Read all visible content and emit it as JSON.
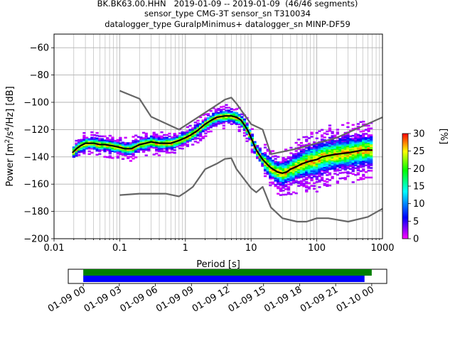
{
  "header": {
    "title_line1": "BK.BK63.00.HHN   2019-01-09 -- 2019-01-09  (46/46 segments)",
    "title_line2": "sensor_type CMG-3T sensor_sn T310034",
    "title_line3": "datalogger_type GuralpMinimus+ datalogger_sn MINP-DF59"
  },
  "chart_data": [
    {
      "type": "heatmap",
      "title": "BK.BK63.00.HHN   2019-01-09 -- 2019-01-09  (46/46 segments)",
      "xlabel": "Period [s]",
      "ylabel": "Power [m^2/s^4/Hz] [dB]",
      "x_scale": "log",
      "xlim": [
        0.01,
        1000
      ],
      "ylim": [
        -200,
        -50
      ],
      "x_ticks": [
        0.01,
        0.1,
        1,
        10,
        100,
        1000
      ],
      "x_tick_labels": [
        "0.01",
        "0.1",
        "1",
        "10",
        "100",
        "1000"
      ],
      "y_ticks": [
        -60,
        -80,
        -100,
        -120,
        -140,
        -160,
        -180,
        -200
      ],
      "y_tick_labels": [
        "−60",
        "−80",
        "−100",
        "−120",
        "−140",
        "−160",
        "−180",
        "−200"
      ],
      "grid": true,
      "colorbar": {
        "label": "[%]",
        "range": [
          0,
          30
        ],
        "ticks": [
          0,
          5,
          10,
          15,
          20,
          25,
          30
        ],
        "tick_labels": [
          "0",
          "5",
          "10",
          "15",
          "20",
          "25",
          "30"
        ],
        "colors": [
          "#ff00ff",
          "#0000ff",
          "#00ffff",
          "#00ff00",
          "#ffff00",
          "#ff0000"
        ]
      },
      "series": [
        {
          "name": "",
          "color": "#000000",
          "x": [
            0.019,
            0.022,
            0.025,
            0.03,
            0.04,
            0.05,
            0.06,
            0.08,
            0.1,
            0.12,
            0.15,
            0.2,
            0.25,
            0.3,
            0.4,
            0.5,
            0.6,
            0.8,
            1.0,
            1.2,
            1.5,
            2.0,
            2.5,
            3.0,
            4.0,
            5.0,
            6.0,
            7.0,
            8.0,
            9.0,
            10,
            12,
            15,
            18,
            20,
            25,
            30,
            35,
            40,
            50,
            60,
            80,
            100,
            120,
            150,
            200,
            300,
            400,
            500,
            700
          ],
          "y": [
            -137,
            -134,
            -132,
            -130,
            -130,
            -131,
            -131,
            -132,
            -133,
            -134,
            -134,
            -131,
            -130,
            -129,
            -130,
            -130,
            -130,
            -128,
            -126,
            -124,
            -121,
            -116,
            -113,
            -111,
            -110,
            -110,
            -111,
            -113,
            -117,
            -121,
            -126,
            -135,
            -142,
            -146,
            -148,
            -151,
            -152,
            -151,
            -149,
            -147,
            -145,
            -143,
            -142,
            -140,
            -139,
            -138,
            -137,
            -136,
            -135,
            -135
          ]
        },
        {
          "name": "",
          "color": "#666666",
          "x": [
            0.1,
            0.2,
            0.3,
            0.8,
            1.0,
            3.0,
            4.0,
            5.0,
            6.0,
            10,
            15,
            20
          ],
          "y": [
            -91.5,
            -97.4,
            -110.5,
            -120,
            -117,
            -102,
            -98,
            -96.5,
            -101,
            -116,
            -120,
            -138
          ]
        },
        {
          "name": "",
          "color": "#666666",
          "x": [
            20,
            50,
            100,
            200,
            1000
          ],
          "y": [
            -138,
            -134,
            -130,
            -126,
            -111
          ]
        },
        {
          "name": "",
          "color": "#666666",
          "x": [
            0.1,
            0.2,
            0.5,
            0.8,
            1.0,
            1.3,
            2.0,
            3.0,
            4.0,
            5.0,
            6.0,
            10,
            12,
            15,
            20,
            30,
            50,
            70,
            100,
            150,
            300,
            600,
            1000
          ],
          "y": [
            -168,
            -167,
            -167,
            -169,
            -166,
            -162,
            -149,
            -145,
            -141.5,
            -141,
            -149,
            -163,
            -166,
            -162,
            -177,
            -185,
            -187.5,
            -187.5,
            -185,
            -185,
            -187.5,
            -184,
            -178
          ]
        }
      ]
    },
    {
      "type": "bar",
      "title": "",
      "description_kind": "segment availability timeline",
      "x_tick_labels": [
        "01-09 00",
        "01-09 03",
        "01-09 06",
        "01-09 09",
        "01-09 12",
        "01-09 15",
        "01-09 18",
        "01-09 21",
        "01-10 00"
      ],
      "x_hours": [
        0,
        3,
        6,
        9,
        12,
        15,
        18,
        21,
        24
      ],
      "xlim_hours": [
        -1.25,
        25.25
      ],
      "series": [
        {
          "name": "",
          "color": "#008000",
          "start_hour": 0,
          "end_hour": 24.0
        },
        {
          "name": "",
          "color": "#0000ff",
          "start_hour": 0,
          "end_hour": 23.4
        }
      ]
    }
  ]
}
